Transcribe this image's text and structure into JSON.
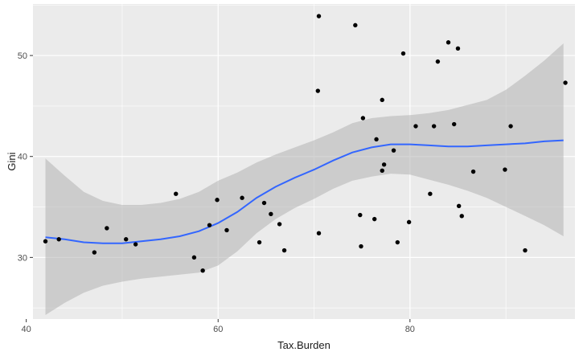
{
  "chart_data": {
    "type": "scatter",
    "xlabel": "Tax.Burden",
    "ylabel": "Gini",
    "xlim": [
      40.7,
      97.2
    ],
    "ylim": [
      23.9,
      55.1
    ],
    "x_ticks": [
      40,
      60,
      80
    ],
    "y_ticks": [
      30,
      40,
      50
    ],
    "x_tick_labels": [
      "40",
      "60",
      "80"
    ],
    "y_tick_labels": [
      "30",
      "40",
      "50"
    ],
    "grid": true,
    "legend": "none",
    "colors": {
      "panel": "#ebebeb",
      "grid": "#ffffff",
      "points": "#000000",
      "smooth_line": "#3366ff",
      "confidence_band": "#b3b3b3"
    },
    "points": [
      {
        "x": 42.0,
        "y": 31.6
      },
      {
        "x": 43.4,
        "y": 31.8
      },
      {
        "x": 47.1,
        "y": 30.5
      },
      {
        "x": 48.4,
        "y": 32.9
      },
      {
        "x": 50.4,
        "y": 31.8
      },
      {
        "x": 51.4,
        "y": 31.3
      },
      {
        "x": 55.6,
        "y": 36.3
      },
      {
        "x": 57.5,
        "y": 30.0
      },
      {
        "x": 58.4,
        "y": 28.7
      },
      {
        "x": 59.1,
        "y": 33.2
      },
      {
        "x": 59.9,
        "y": 35.7
      },
      {
        "x": 60.9,
        "y": 32.7
      },
      {
        "x": 62.5,
        "y": 35.9
      },
      {
        "x": 64.3,
        "y": 31.5
      },
      {
        "x": 64.8,
        "y": 35.4
      },
      {
        "x": 65.5,
        "y": 34.3
      },
      {
        "x": 66.4,
        "y": 33.3
      },
      {
        "x": 66.9,
        "y": 30.7
      },
      {
        "x": 70.5,
        "y": 53.9
      },
      {
        "x": 70.4,
        "y": 46.5
      },
      {
        "x": 70.5,
        "y": 32.4
      },
      {
        "x": 74.3,
        "y": 53.0
      },
      {
        "x": 74.8,
        "y": 34.2
      },
      {
        "x": 74.9,
        "y": 31.1
      },
      {
        "x": 75.1,
        "y": 43.8
      },
      {
        "x": 76.3,
        "y": 33.8
      },
      {
        "x": 76.5,
        "y": 41.7
      },
      {
        "x": 77.1,
        "y": 45.6
      },
      {
        "x": 77.1,
        "y": 38.6
      },
      {
        "x": 77.3,
        "y": 39.2
      },
      {
        "x": 78.3,
        "y": 40.6
      },
      {
        "x": 78.7,
        "y": 31.5
      },
      {
        "x": 79.3,
        "y": 50.2
      },
      {
        "x": 79.9,
        "y": 33.5
      },
      {
        "x": 80.6,
        "y": 43.0
      },
      {
        "x": 82.1,
        "y": 36.3
      },
      {
        "x": 82.5,
        "y": 43.0
      },
      {
        "x": 82.9,
        "y": 49.4
      },
      {
        "x": 84.0,
        "y": 51.3
      },
      {
        "x": 84.6,
        "y": 43.2
      },
      {
        "x": 85.0,
        "y": 50.7
      },
      {
        "x": 85.1,
        "y": 35.1
      },
      {
        "x": 85.4,
        "y": 34.1
      },
      {
        "x": 86.6,
        "y": 38.5
      },
      {
        "x": 89.9,
        "y": 38.7
      },
      {
        "x": 90.5,
        "y": 43.0
      },
      {
        "x": 92.0,
        "y": 30.7
      },
      {
        "x": 96.2,
        "y": 47.3
      }
    ],
    "smooth": {
      "x": [
        42,
        44,
        46,
        48,
        50,
        52,
        54,
        56,
        58,
        60,
        62,
        64,
        66,
        68,
        70,
        72,
        74,
        76,
        78,
        80,
        82,
        84,
        86,
        88,
        90,
        92,
        94,
        96
      ],
      "y": [
        32.0,
        31.8,
        31.5,
        31.4,
        31.4,
        31.6,
        31.8,
        32.1,
        32.6,
        33.4,
        34.5,
        35.9,
        37.0,
        37.9,
        38.7,
        39.6,
        40.4,
        40.9,
        41.2,
        41.2,
        41.1,
        41.0,
        41.0,
        41.1,
        41.2,
        41.3,
        41.5,
        41.6
      ],
      "lower": [
        24.3,
        25.5,
        26.5,
        27.2,
        27.6,
        27.9,
        28.1,
        28.3,
        28.5,
        29.2,
        30.6,
        32.4,
        33.8,
        34.9,
        35.8,
        36.8,
        37.6,
        38.0,
        38.3,
        38.2,
        37.7,
        37.2,
        36.6,
        35.9,
        35.0,
        34.1,
        33.2,
        32.1
      ],
      "upper": [
        39.8,
        38.1,
        36.5,
        35.6,
        35.2,
        35.2,
        35.4,
        35.8,
        36.5,
        37.6,
        38.4,
        39.4,
        40.2,
        40.9,
        41.6,
        42.4,
        43.3,
        43.8,
        44.0,
        44.1,
        44.3,
        44.6,
        45.1,
        45.6,
        46.6,
        48.0,
        49.5,
        51.2
      ]
    }
  }
}
